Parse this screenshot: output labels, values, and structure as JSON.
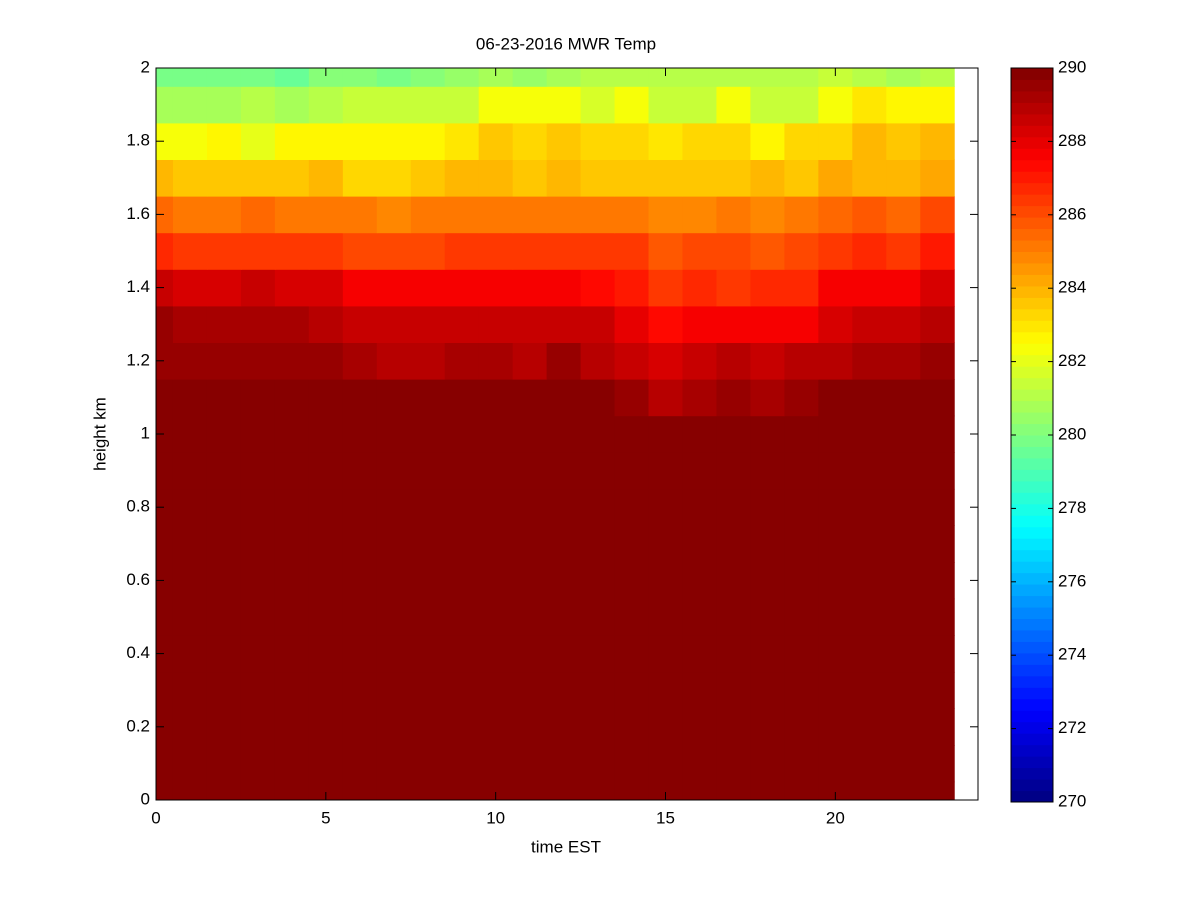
{
  "chart_data": {
    "type": "heatmap",
    "title": "06-23-2016 MWR Temp",
    "xlabel": "time EST",
    "ylabel": "height km",
    "colormap": "jet",
    "x": [
      0,
      1,
      2,
      3,
      4,
      5,
      6,
      7,
      8,
      9,
      10,
      11,
      12,
      13,
      14,
      15,
      16,
      17,
      18,
      19,
      20,
      21,
      22,
      23
    ],
    "y": [
      0,
      0.1,
      0.2,
      0.3,
      0.4,
      0.5,
      0.6,
      0.7,
      0.8,
      0.9,
      1.0,
      1.1,
      1.2,
      1.3,
      1.4,
      1.5,
      1.6,
      1.7,
      1.8,
      1.9,
      2.0
    ],
    "z": [
      [
        290,
        290,
        290,
        290,
        290,
        290,
        290,
        290,
        290,
        290,
        290,
        290,
        290,
        290,
        290,
        290,
        290,
        290,
        290,
        290,
        290,
        290,
        290,
        290
      ],
      [
        290,
        290,
        290,
        290,
        290,
        290,
        290,
        290,
        290,
        290,
        290,
        290,
        290,
        290,
        290,
        290,
        290,
        290,
        290,
        290,
        290,
        290,
        290,
        290
      ],
      [
        290,
        290,
        290,
        290,
        290,
        290,
        290,
        290,
        290,
        290,
        290,
        290,
        290,
        290,
        290,
        290,
        290,
        290,
        290,
        290,
        290,
        290,
        290,
        290
      ],
      [
        290,
        290,
        290,
        290,
        290,
        290,
        290,
        290,
        290,
        290,
        290,
        290,
        290,
        290,
        290,
        290,
        290,
        290,
        290,
        290,
        290,
        290,
        290,
        290
      ],
      [
        290,
        290,
        290,
        290,
        290,
        290,
        290,
        290,
        290,
        290,
        290,
        290,
        290,
        290,
        290,
        290,
        290,
        290,
        290,
        290,
        290,
        290,
        290,
        290
      ],
      [
        290,
        290,
        290,
        290,
        290,
        290,
        290,
        290,
        290,
        290,
        290,
        290,
        290,
        290,
        290,
        290,
        290,
        290,
        290,
        290,
        290,
        290,
        290,
        290
      ],
      [
        290,
        290,
        290,
        290,
        290,
        290,
        290,
        290,
        290,
        290,
        290,
        290,
        290,
        290,
        290,
        290,
        290,
        290,
        290,
        290,
        290,
        290,
        290,
        290
      ],
      [
        290,
        290,
        290,
        290,
        290,
        290,
        290,
        290,
        290,
        290,
        290,
        290,
        290,
        290,
        290,
        290,
        290,
        290,
        290,
        290,
        290,
        290,
        290,
        290
      ],
      [
        290,
        290,
        290,
        290,
        290,
        290,
        290,
        290,
        290,
        290,
        290,
        290,
        290,
        290,
        290,
        290,
        290,
        290,
        290,
        290,
        290,
        290,
        290,
        290
      ],
      [
        290,
        290,
        290,
        290,
        290,
        290,
        290,
        290,
        290,
        290,
        290,
        290,
        290,
        290,
        290,
        290,
        290,
        290,
        290,
        290,
        290,
        290,
        290,
        290
      ],
      [
        290,
        290,
        290,
        290,
        290,
        290,
        290,
        290,
        290,
        290,
        290,
        290,
        290,
        290,
        290,
        290,
        290,
        290,
        290,
        290,
        290,
        290,
        290,
        290
      ],
      [
        290,
        290,
        290,
        290,
        290,
        290,
        290,
        290,
        290,
        290,
        290,
        290,
        290,
        290,
        289.4,
        289,
        289.2,
        289.5,
        289.2,
        289.5,
        290,
        290,
        290,
        290
      ],
      [
        289.6,
        289.6,
        289.6,
        289.6,
        289.6,
        289.6,
        289.3,
        289,
        289,
        289.3,
        289.3,
        289,
        289.5,
        288.8,
        288.7,
        288.2,
        288.6,
        288.8,
        288.6,
        288.8,
        289,
        289.2,
        289.2,
        289.5
      ],
      [
        289.6,
        289.3,
        289.3,
        289.3,
        289.3,
        289,
        288.6,
        288.5,
        288.5,
        288.7,
        288.7,
        288.7,
        288.7,
        288.5,
        288,
        287.3,
        287.8,
        287.8,
        287.8,
        287.8,
        288.2,
        288.6,
        288.6,
        289
      ],
      [
        288.5,
        288.3,
        288.2,
        288.5,
        288.2,
        288.2,
        287.8,
        287.5,
        287.5,
        287.5,
        287.5,
        287.5,
        287.5,
        287.3,
        287,
        286.5,
        286.8,
        286.5,
        286.8,
        286.8,
        287.5,
        287.5,
        287.8,
        288.2
      ],
      [
        286.8,
        286.5,
        286.5,
        286.5,
        286.5,
        286.5,
        286.2,
        286,
        286,
        286.3,
        286.5,
        286.3,
        286.3,
        286.3,
        286.3,
        285.8,
        286,
        286.2,
        285.8,
        286,
        286.5,
        286.8,
        286.3,
        287
      ],
      [
        285.5,
        285.3,
        285,
        285.5,
        285,
        285,
        285,
        284.8,
        285,
        285.3,
        285.3,
        285.3,
        285.3,
        285.2,
        285.2,
        284.8,
        284.8,
        285,
        284.8,
        285,
        285.5,
        285.8,
        285.5,
        286
      ],
      [
        284,
        283.5,
        283.5,
        283.5,
        283.5,
        283.8,
        283.3,
        283.3,
        283.5,
        283.8,
        284,
        283.7,
        284,
        283.7,
        283.7,
        283.5,
        283.5,
        283.7,
        283.8,
        283.7,
        284.3,
        284,
        283.8,
        284.3
      ],
      [
        282.2,
        282.2,
        282.6,
        282,
        282.6,
        282.6,
        282.6,
        282.6,
        282.6,
        283,
        283.5,
        283.2,
        283.5,
        283.3,
        283.3,
        283,
        283.3,
        283.3,
        282.8,
        283.2,
        283.2,
        283.8,
        283.5,
        283.8
      ],
      [
        280.8,
        280.8,
        280.8,
        281.2,
        280.8,
        281.2,
        281.3,
        281.3,
        281.3,
        281.5,
        282.2,
        282.2,
        282.2,
        281.8,
        282.2,
        281.5,
        281.5,
        282.2,
        281.5,
        281.5,
        282.2,
        283,
        282.5,
        282.8
      ],
      [
        279.8,
        279.8,
        279.8,
        279.8,
        279.6,
        280.2,
        280,
        279.8,
        280.2,
        280.5,
        280.8,
        280.5,
        280.8,
        281,
        281,
        281,
        281,
        281,
        281,
        281,
        281.5,
        281,
        280.8,
        281.2
      ]
    ],
    "xlim": [
      0,
      24.2
    ],
    "ylim": [
      0,
      2
    ],
    "xticks": [
      0,
      5,
      10,
      15,
      20
    ],
    "yticks": [
      0,
      0.2,
      0.4,
      0.6,
      0.8,
      1,
      1.2,
      1.4,
      1.6,
      1.8,
      2
    ],
    "clim": [
      270,
      290
    ],
    "cticks": [
      270,
      272,
      274,
      276,
      278,
      280,
      282,
      284,
      286,
      288,
      290
    ]
  }
}
